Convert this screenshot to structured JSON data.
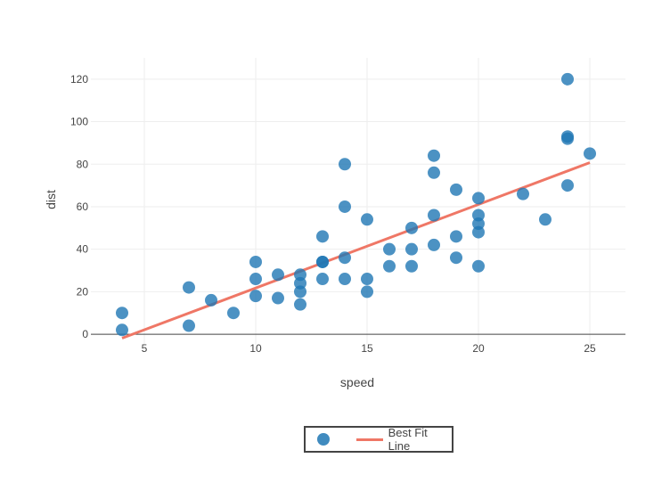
{
  "chart_data": {
    "type": "scatter",
    "xlabel": "speed",
    "ylabel": "dist",
    "xlim": [
      2.6,
      26.6
    ],
    "ylim": [
      -5,
      130
    ],
    "xticks": [
      5,
      10,
      15,
      20,
      25
    ],
    "yticks": [
      0,
      20,
      40,
      60,
      80,
      100,
      120
    ],
    "grid": true,
    "legend_position": "bottom-center",
    "series": [
      {
        "mode": "markers",
        "color": "#1f77b4",
        "x": [
          4,
          4,
          7,
          7,
          8,
          9,
          10,
          10,
          10,
          11,
          11,
          12,
          12,
          12,
          12,
          13,
          13,
          13,
          13,
          14,
          14,
          14,
          14,
          15,
          15,
          15,
          16,
          16,
          17,
          17,
          17,
          18,
          18,
          18,
          18,
          19,
          19,
          19,
          20,
          20,
          20,
          20,
          20,
          22,
          23,
          24,
          24,
          24,
          24,
          25
        ],
        "y": [
          2,
          10,
          4,
          22,
          16,
          10,
          18,
          26,
          34,
          17,
          28,
          14,
          20,
          24,
          28,
          26,
          34,
          34,
          46,
          26,
          36,
          60,
          80,
          20,
          26,
          54,
          32,
          40,
          32,
          40,
          50,
          42,
          56,
          76,
          84,
          36,
          46,
          68,
          32,
          48,
          52,
          56,
          64,
          66,
          54,
          70,
          92,
          93,
          120,
          85
        ]
      },
      {
        "name": "Best Fit Line",
        "mode": "line",
        "color": "#ef7766",
        "x": [
          4,
          25
        ],
        "y": [
          -1.849,
          80.731
        ]
      }
    ]
  },
  "legend": {
    "items": [
      {
        "label": "",
        "kind": "marker",
        "color": "#1f77b4"
      },
      {
        "label": "Best Fit Line",
        "kind": "line",
        "color": "#ef7766"
      }
    ]
  }
}
